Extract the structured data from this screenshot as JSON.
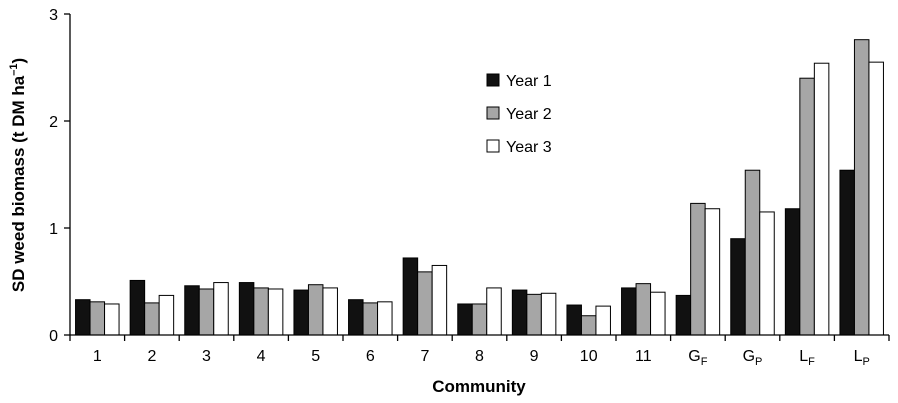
{
  "chart_data": {
    "type": "bar",
    "xlabel": "Community",
    "ylabel": "SD weed biomass (t DM ha",
    "ylabel_sup": "–1",
    "ylabel_close": ")",
    "ylim": [
      0,
      3
    ],
    "yticks": [
      0,
      1,
      2,
      3
    ],
    "grid": false,
    "legend_position": "top-center",
    "categories": [
      {
        "main": "1",
        "sub": ""
      },
      {
        "main": "2",
        "sub": ""
      },
      {
        "main": "3",
        "sub": ""
      },
      {
        "main": "4",
        "sub": ""
      },
      {
        "main": "5",
        "sub": ""
      },
      {
        "main": "6",
        "sub": ""
      },
      {
        "main": "7",
        "sub": ""
      },
      {
        "main": "8",
        "sub": ""
      },
      {
        "main": "9",
        "sub": ""
      },
      {
        "main": "10",
        "sub": ""
      },
      {
        "main": "11",
        "sub": ""
      },
      {
        "main": "G",
        "sub": "F"
      },
      {
        "main": "G",
        "sub": "P"
      },
      {
        "main": "L",
        "sub": "F"
      },
      {
        "main": "L",
        "sub": "P"
      }
    ],
    "series": [
      {
        "name": "Year 1",
        "color": "#111111",
        "values": [
          0.33,
          0.51,
          0.46,
          0.49,
          0.42,
          0.33,
          0.72,
          0.29,
          0.42,
          0.28,
          0.44,
          0.37,
          0.9,
          1.18,
          1.54
        ]
      },
      {
        "name": "Year 2",
        "color": "#a6a6a6",
        "values": [
          0.31,
          0.3,
          0.43,
          0.44,
          0.47,
          0.3,
          0.59,
          0.29,
          0.38,
          0.18,
          0.48,
          1.23,
          1.54,
          2.4,
          2.76
        ]
      },
      {
        "name": "Year 3",
        "color": "#ffffff",
        "values": [
          0.29,
          0.37,
          0.49,
          0.43,
          0.44,
          0.31,
          0.65,
          0.44,
          0.39,
          0.27,
          0.4,
          1.18,
          1.15,
          2.54,
          2.55
        ]
      }
    ]
  }
}
